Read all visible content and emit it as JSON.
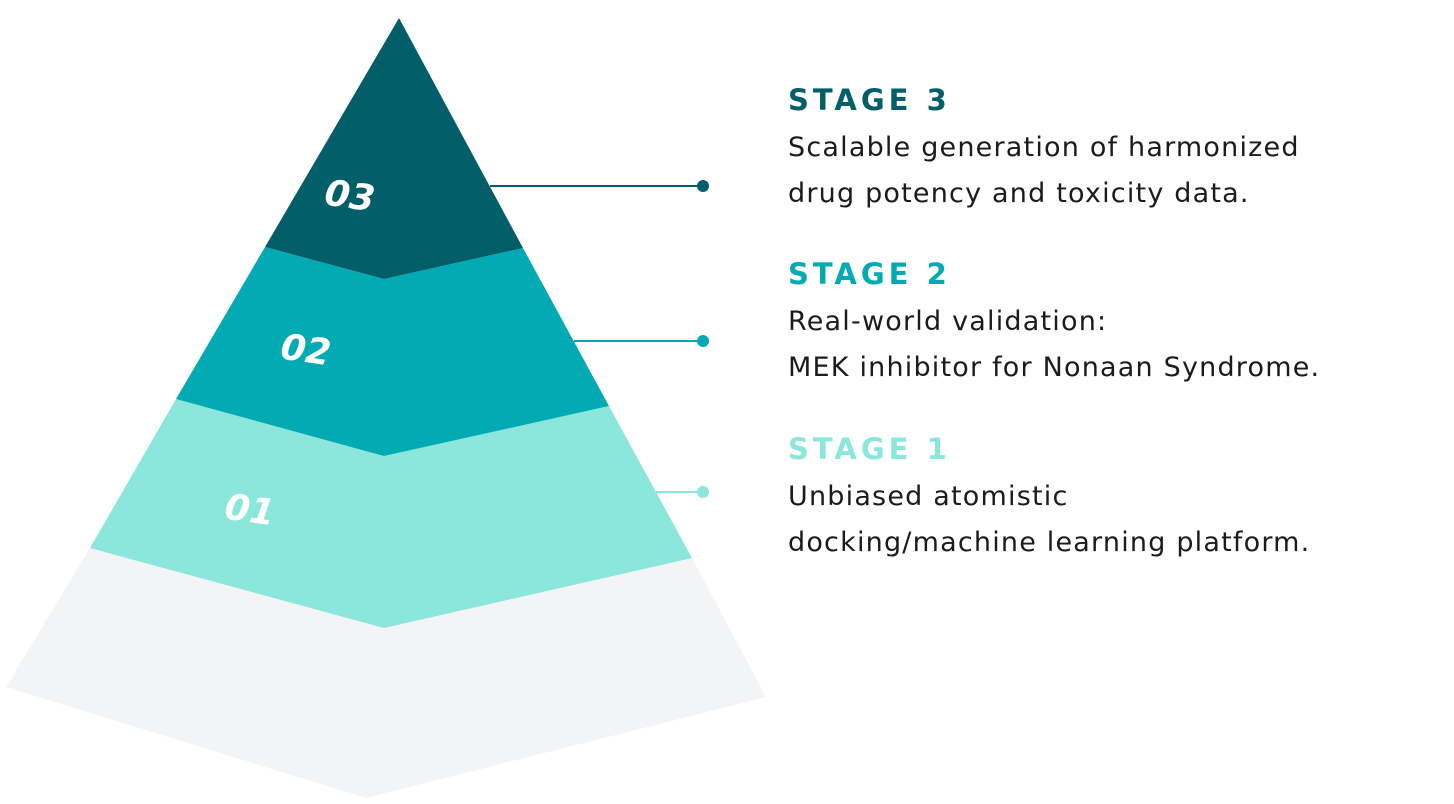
{
  "diagram": {
    "colors": {
      "stage3": "#025e68",
      "stage2": "#02aab3",
      "stage1": "#8be6dc",
      "base": "#f3f4f6",
      "text": "#1b1b1b",
      "number": "#ffffff"
    },
    "tiers": [
      {
        "number": "03"
      },
      {
        "number": "02"
      },
      {
        "number": "01"
      }
    ],
    "stages": [
      {
        "label": "STAGE 3",
        "lines": [
          "Scalable generation of harmonized",
          "drug potency and toxicity data."
        ]
      },
      {
        "label": "STAGE 2",
        "lines": [
          "Real-world validation:",
          "MEK inhibitor for Nonaan Syndrome."
        ]
      },
      {
        "label": "STAGE 1",
        "lines": [
          "Unbiased atomistic",
          "docking/machine learning platform."
        ]
      }
    ]
  }
}
